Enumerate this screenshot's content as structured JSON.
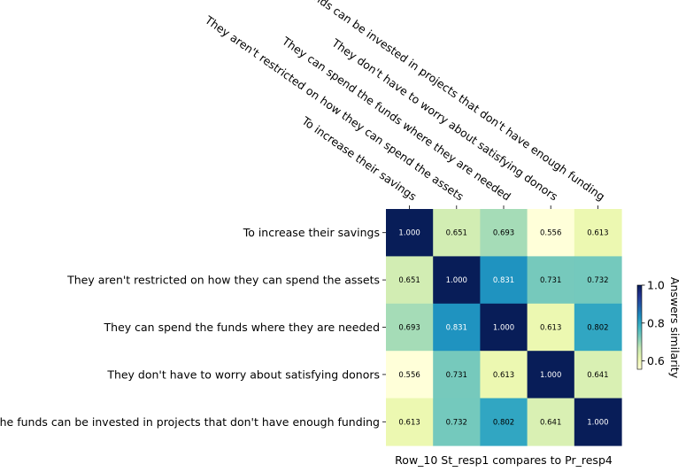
{
  "chart_data": {
    "type": "heatmap",
    "rows": [
      "To increase their savings",
      "They aren't restricted on how they can spend the assets",
      "They can spend the funds where they are needed",
      "They don't have to worry about satisfying donors",
      "The funds can be invested in projects that don't have enough funding"
    ],
    "columns": [
      "To increase their savings",
      "They aren't restricted on how they can spend the assets",
      "They can spend the funds where they are needed",
      "They don't have to worry about satisfying donors",
      "The funds can be invested in projects that don't have enough funding"
    ],
    "values": [
      [
        1.0,
        0.651,
        0.693,
        0.556,
        0.613
      ],
      [
        0.651,
        1.0,
        0.831,
        0.731,
        0.732
      ],
      [
        0.693,
        0.831,
        1.0,
        0.613,
        0.802
      ],
      [
        0.556,
        0.731,
        0.613,
        1.0,
        0.641
      ],
      [
        0.613,
        0.732,
        0.802,
        0.641,
        1.0
      ]
    ],
    "cell_labels": [
      [
        "1.000",
        "0.651",
        "0.693",
        "0.556",
        "0.613"
      ],
      [
        "0.651",
        "1.000",
        "0.831",
        "0.731",
        "0.732"
      ],
      [
        "0.693",
        "0.831",
        "1.000",
        "0.613",
        "0.802"
      ],
      [
        "0.556",
        "0.731",
        "0.613",
        "1.000",
        "0.641"
      ],
      [
        "0.613",
        "0.732",
        "0.802",
        "0.641",
        "1.000"
      ]
    ],
    "xlabel": "Row_10 St_resp1 compares to Pr_resp4",
    "colorbar": {
      "label": "Answers similarity",
      "colormap": "YlGnBu",
      "range": [
        0.556,
        1.0
      ],
      "ticks": [
        "0.6",
        "0.8",
        "1.0"
      ],
      "tick_values": [
        0.6,
        0.8,
        1.0
      ]
    }
  }
}
